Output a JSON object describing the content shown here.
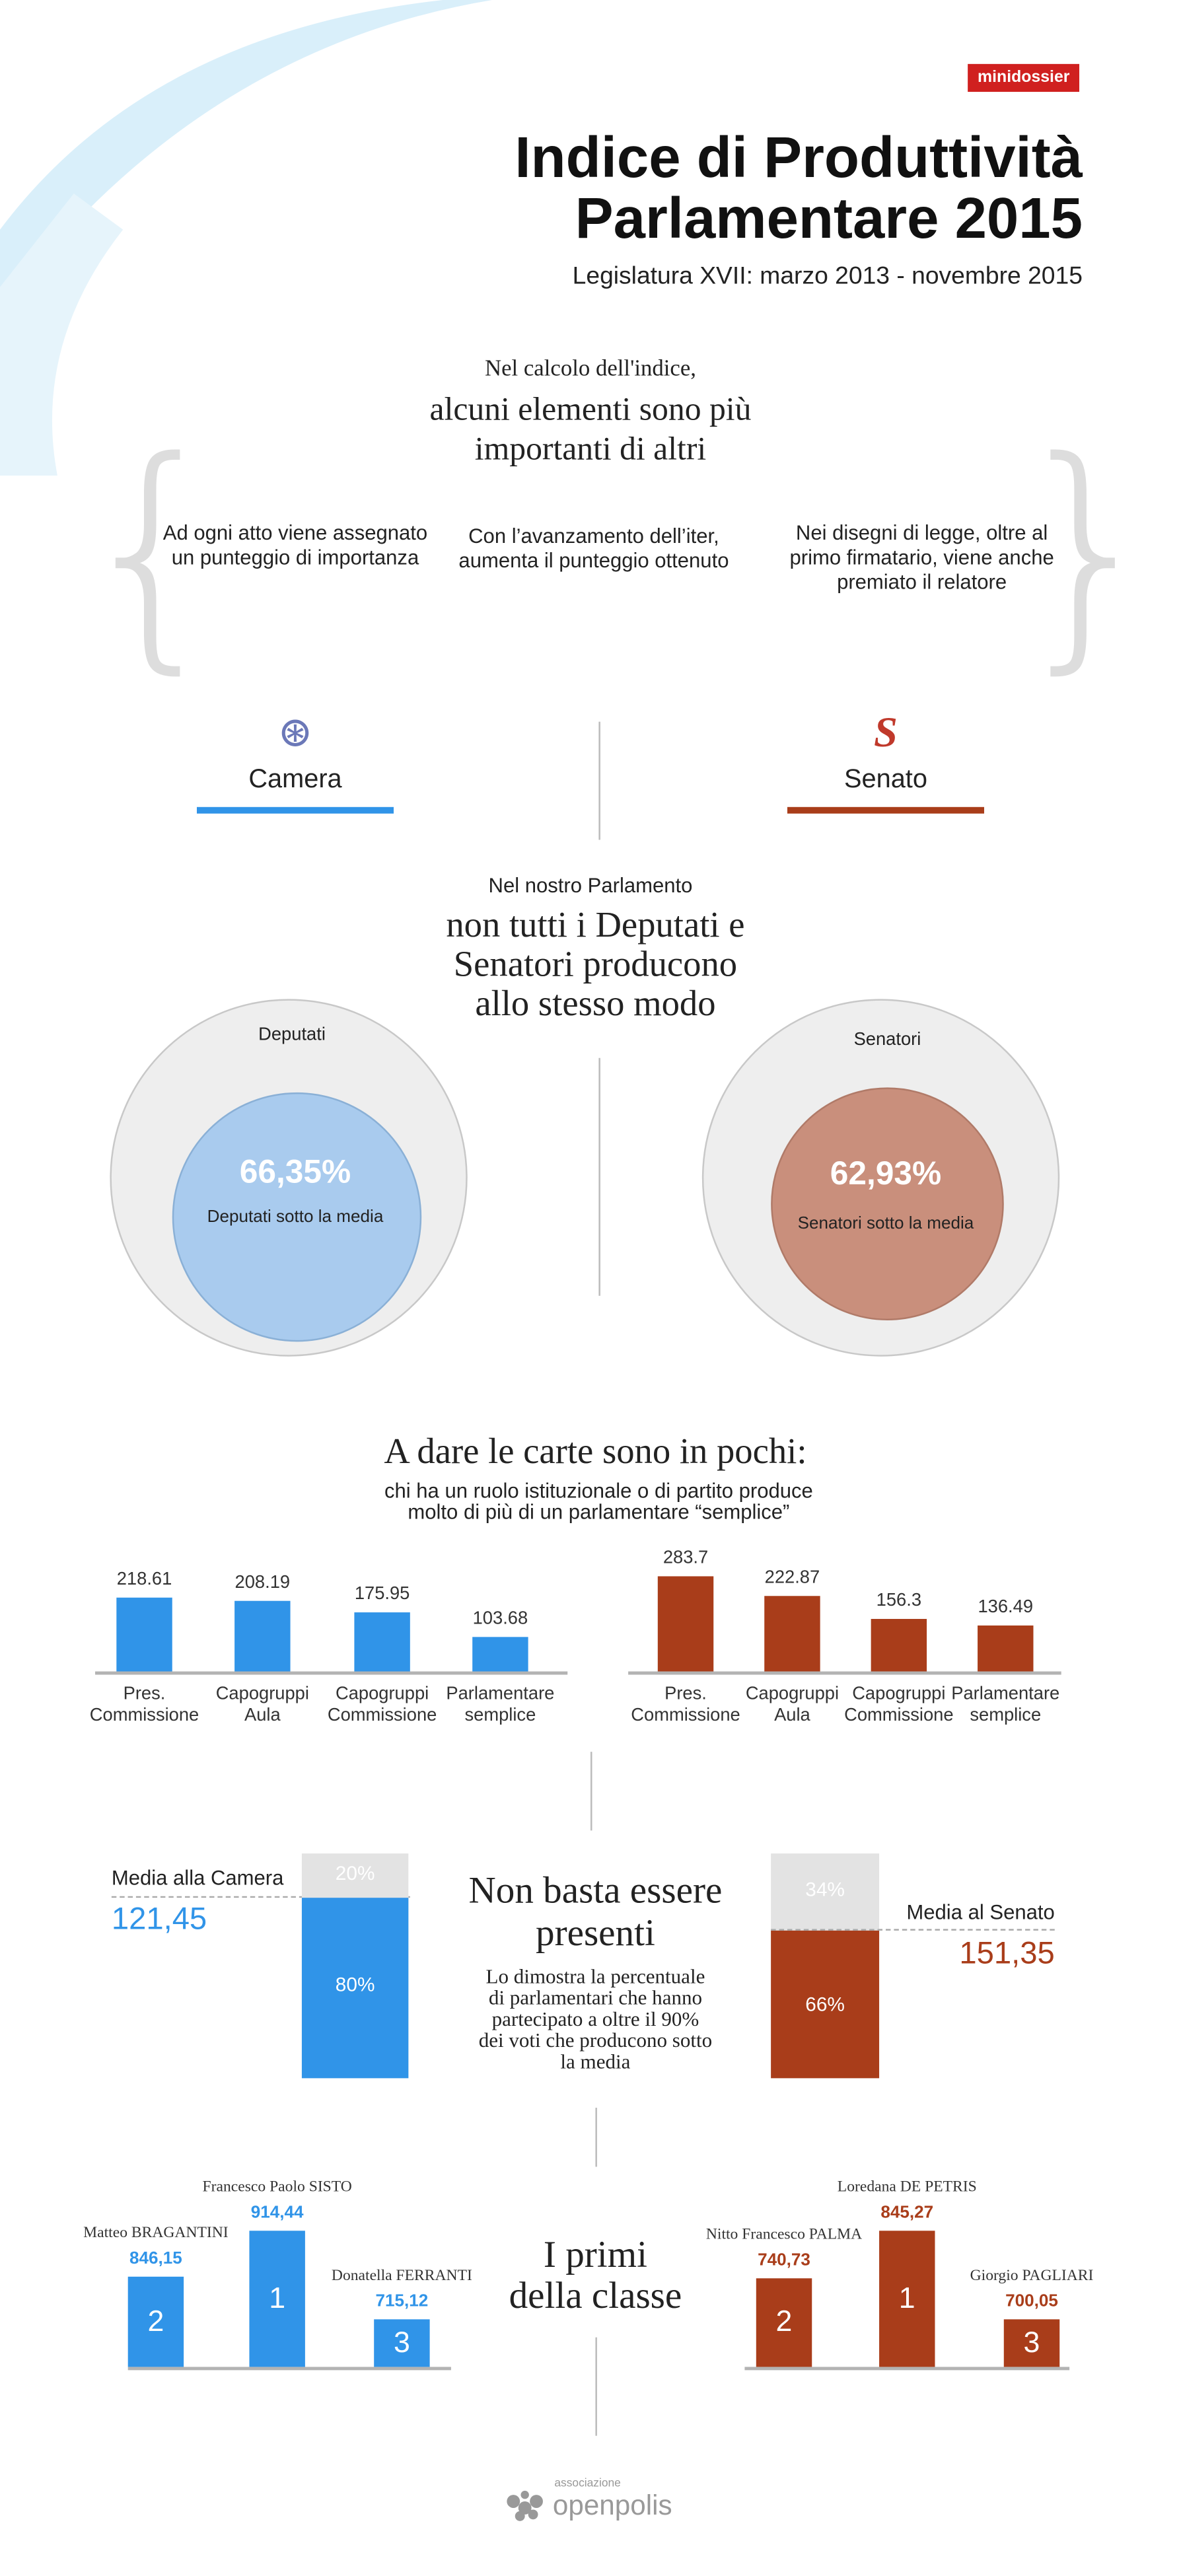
{
  "header": {
    "badge": "minidossier",
    "title_line1": "Indice di Produttività",
    "title_line2": "Parlamentare 2015",
    "subtitle": "Legislatura XVII: marzo 2013 - novembre 2015"
  },
  "intro": {
    "lead": "Nel calcolo dell'indice,",
    "headline_line1": "alcuni elementi sono più",
    "headline_line2": "importanti di altri",
    "points": [
      "Ad ogni atto viene assegnato un punteggio di importanza",
      "Con l’avanzamento dell’iter, aumenta il punteggio ottenuto",
      "Nei disegni di legge, oltre al primo firmatario, viene anche premiato il relatore"
    ]
  },
  "chambers": {
    "camera": "Camera",
    "senato": "Senato"
  },
  "colors": {
    "camera": "#3094e8",
    "senato": "#a93d1a",
    "camera_light": "#a9cbee",
    "senato_light": "#c98f7c"
  },
  "below_avg": {
    "lead": "Nel nostro Parlamento",
    "headline": [
      "non tutti i Deputati e",
      "Senatori producono",
      "allo stesso modo"
    ],
    "camera": {
      "outer_label": "Deputati",
      "percent": "66,35%",
      "inner_label": "Deputati sotto la media",
      "value": 66.35
    },
    "senato": {
      "outer_label": "Senatori",
      "percent": "62,93%",
      "inner_label": "Senatori sotto la media",
      "value": 62.93
    }
  },
  "roles": {
    "headline": "A dare le carte sono in pochi:",
    "sub_line1": "chi ha un ruolo istituzionale o di partito produce",
    "sub_line2": "molto di più di un parlamentare “semplice”"
  },
  "chart_data": [
    {
      "type": "bar",
      "title": "Camera",
      "categories": [
        "Pres. Commissione",
        "Capogruppi Aula",
        "Capogruppi Commissione",
        "Parlamentare semplice"
      ],
      "values": [
        218.61,
        208.19,
        175.95,
        103.68
      ],
      "labels": [
        "218.61",
        "208.19",
        "175.95",
        "103.68"
      ],
      "ylim": [
        0,
        300
      ]
    },
    {
      "type": "bar",
      "title": "Senato",
      "categories": [
        "Pres. Commissione",
        "Capogruppi Aula",
        "Capogruppi Commissione",
        "Parlamentare semplice"
      ],
      "values": [
        283.7,
        222.87,
        156.3,
        136.49
      ],
      "labels": [
        "283.7",
        "222.87",
        "156.3",
        "136.49"
      ],
      "ylim": [
        0,
        300
      ]
    }
  ],
  "presence": {
    "headline_line1": "Non basta essere",
    "headline_line2": "presenti",
    "text": [
      "Lo dimostra la percentuale",
      "di parlamentari che hanno",
      "partecipato a oltre il 90%",
      "dei voti che producono sotto",
      "la media"
    ],
    "camera": {
      "media_label": "Media alla Camera",
      "media_value": "121,45",
      "top_pct": "20%",
      "bottom_pct": "80%",
      "bottom_value": 80
    },
    "senato": {
      "media_label": "Media al Senato",
      "media_value": "151,35",
      "top_pct": "34%",
      "bottom_pct": "66%",
      "bottom_value": 66
    }
  },
  "top": {
    "headline_line1": "I primi",
    "headline_line2": "della classe",
    "camera": [
      {
        "rank": "1",
        "name": "Francesco Paolo SISTO",
        "score": "914,44"
      },
      {
        "rank": "2",
        "name": "Matteo BRAGANTINI",
        "score": "846,15"
      },
      {
        "rank": "3",
        "name": "Donatella FERRANTI",
        "score": "715,12"
      }
    ],
    "senato": [
      {
        "rank": "1",
        "name": "Loredana DE PETRIS",
        "score": "845,27"
      },
      {
        "rank": "2",
        "name": "Nitto Francesco PALMA",
        "score": "740,73"
      },
      {
        "rank": "3",
        "name": "Giorgio PAGLIARI",
        "score": "700,05"
      }
    ]
  },
  "footer": {
    "logo_small": "associazione",
    "logo_main": "openpolis"
  }
}
